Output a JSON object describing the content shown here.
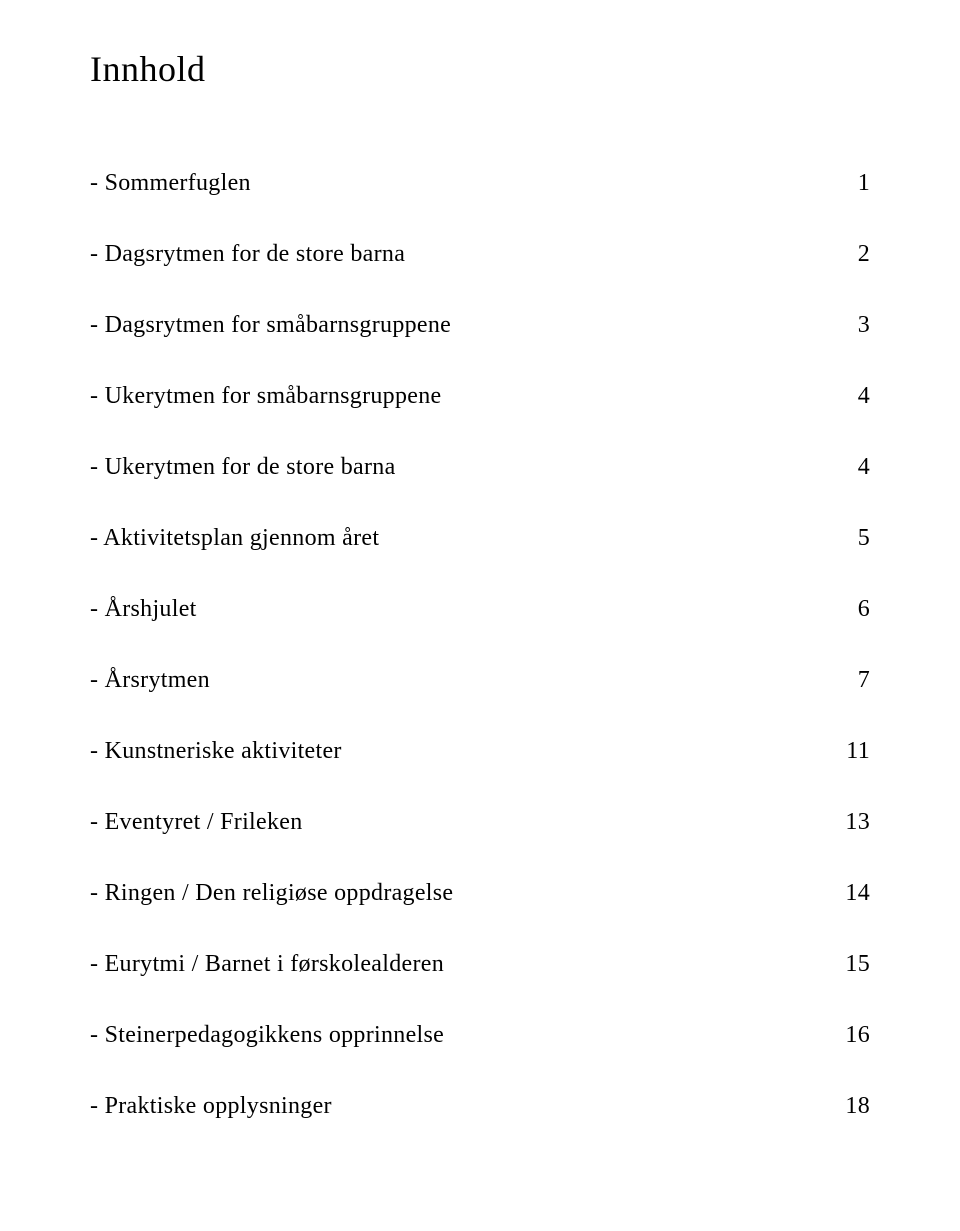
{
  "title": "Innhold",
  "title_fontsize": 36,
  "item_fontsize": 24,
  "text_color": "#000000",
  "background_color": "#ffffff",
  "item_spacing": 44,
  "title_margin_bottom": 80,
  "items": [
    {
      "label": "- Sommerfuglen",
      "page": "1"
    },
    {
      "label": "- Dagsrytmen for de store barna",
      "page": "2"
    },
    {
      "label": "- Dagsrytmen for småbarnsgruppene",
      "page": "3"
    },
    {
      "label": "- Ukerytmen for småbarnsgruppene",
      "page": "4"
    },
    {
      "label": "- Ukerytmen for de store barna",
      "page": "4"
    },
    {
      "label": "- Aktivitetsplan gjennom året",
      "page": "5"
    },
    {
      "label": "- Årshjulet",
      "page": "6"
    },
    {
      "label": "- Årsrytmen",
      "page": "7"
    },
    {
      "label": "- Kunstneriske aktiviteter",
      "page": "11"
    },
    {
      "label": "- Eventyret / Frileken",
      "page": "13"
    },
    {
      "label": "- Ringen / Den religiøse oppdragelse",
      "page": "14"
    },
    {
      "label": "- Eurytmi / Barnet i førskolealderen",
      "page": "15"
    },
    {
      "label": "- Steinerpedagogikkens opprinnelse",
      "page": "16"
    },
    {
      "label": "- Praktiske opplysninger",
      "page": "18"
    }
  ]
}
